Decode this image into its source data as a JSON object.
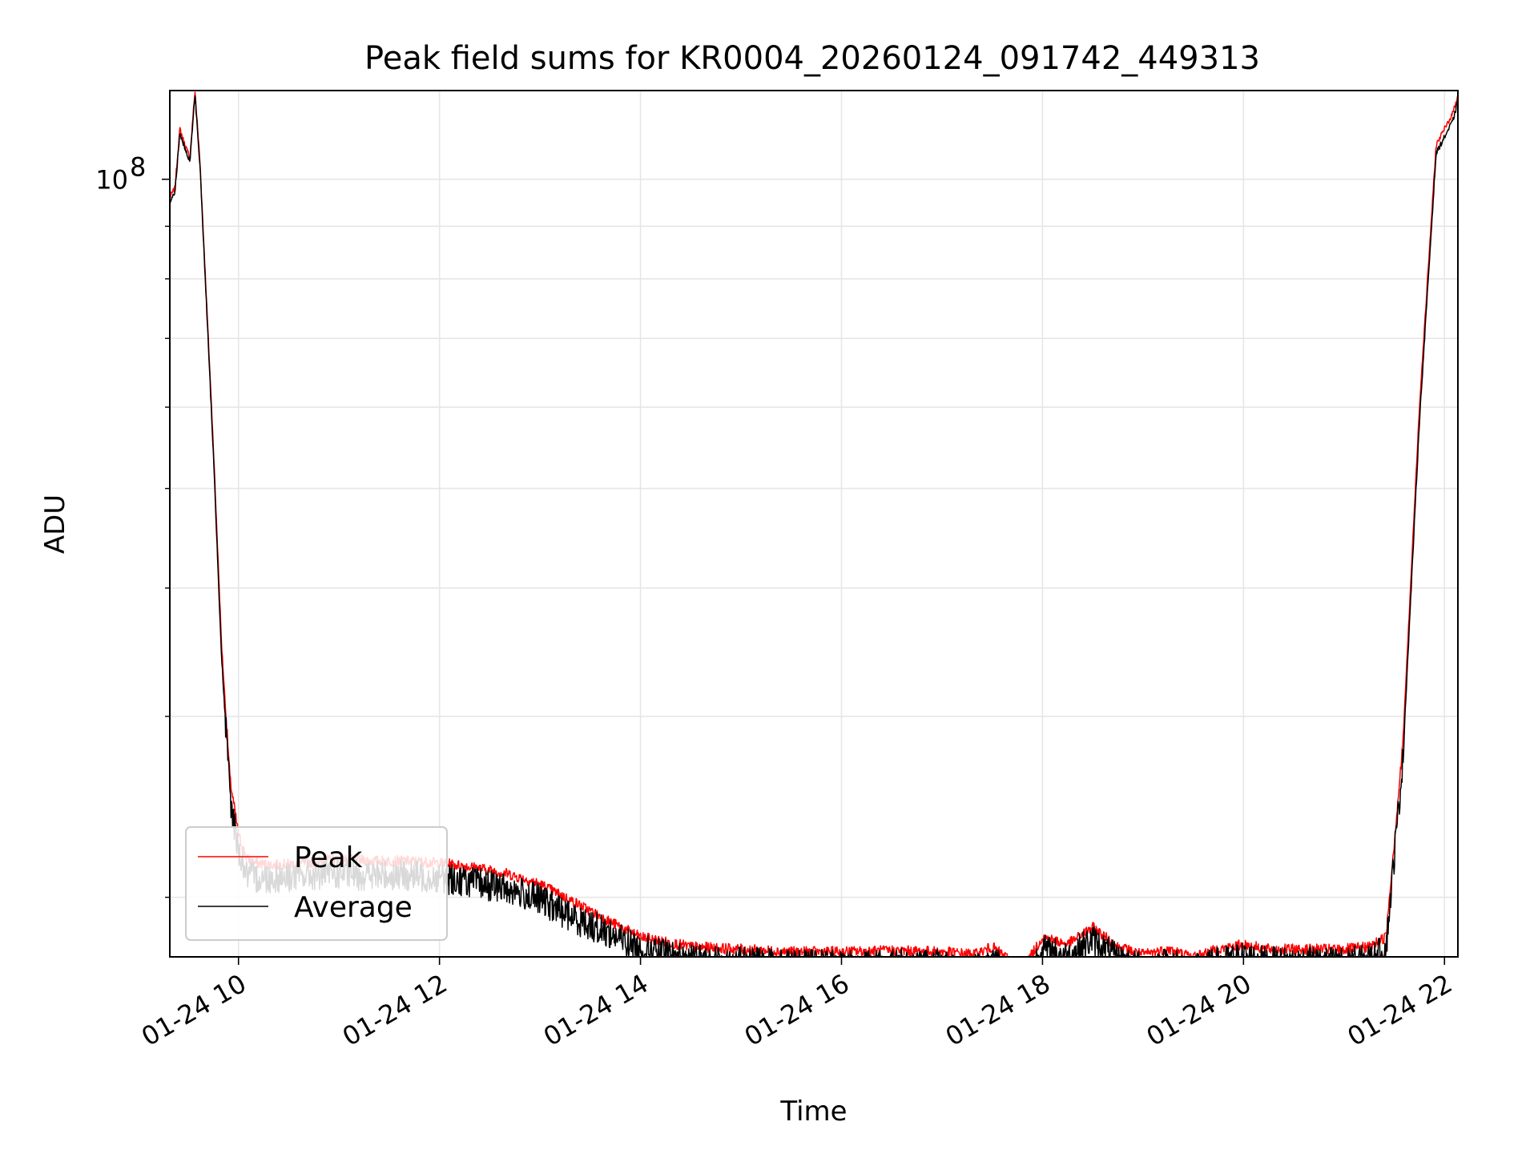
{
  "chart_data": {
    "type": "line",
    "title": "Peak field sums for KR0004_20260124_091742_449313",
    "xlabel": "Time",
    "ylabel": "ADU",
    "yscale": "log",
    "ylim": [
      17500000,
      122000000
    ],
    "xlim": [
      "01-24 09:19",
      "01-24 22:08"
    ],
    "grid": true,
    "legend_position": "lower-left",
    "x_ticks": [
      "01-24 10",
      "01-24 12",
      "01-24 14",
      "01-24 16",
      "01-24 18",
      "01-24 20",
      "01-24 22"
    ],
    "y_ticks": [
      {
        "label": "10",
        "exponent": "8",
        "value": 100000000
      }
    ],
    "y_minor_ticks": [
      20000000,
      30000000,
      40000000,
      50000000,
      60000000,
      70000000,
      80000000,
      90000000
    ],
    "x": [
      "09:19",
      "09:22",
      "09:25",
      "09:28",
      "09:31",
      "09:34",
      "09:37",
      "09:40",
      "09:45",
      "09:50",
      "09:55",
      "10:00",
      "10:05",
      "10:10",
      "10:20",
      "10:40",
      "11:00",
      "11:20",
      "11:40",
      "12:00",
      "12:20",
      "12:40",
      "13:00",
      "13:20",
      "13:40",
      "14:00",
      "14:30",
      "15:00",
      "15:30",
      "16:00",
      "16:30",
      "17:00",
      "17:20",
      "17:30",
      "17:40",
      "17:50",
      "18:00",
      "18:15",
      "18:30",
      "18:45",
      "19:00",
      "19:15",
      "19:30",
      "19:45",
      "20:00",
      "20:15",
      "20:30",
      "20:45",
      "21:00",
      "21:15",
      "21:25",
      "21:35",
      "21:45",
      "21:55",
      "22:05",
      "22:08"
    ],
    "series": [
      {
        "name": "Peak",
        "color": "#ff0000",
        "values": [
          96000000,
          98000000,
          112000000,
          108000000,
          105000000,
          122000000,
          104000000,
          82000000,
          55000000,
          35000000,
          26000000,
          23000000,
          21800000,
          21600000,
          21500000,
          21600000,
          21800000,
          21700000,
          21700000,
          21600000,
          21400000,
          21100000,
          20600000,
          19800000,
          19000000,
          18300000,
          17900000,
          17800000,
          17700000,
          17700000,
          17750000,
          17700000,
          17600000,
          17900000,
          17400000,
          17200000,
          18300000,
          18000000,
          18700000,
          17900000,
          17600000,
          17800000,
          17500000,
          17800000,
          18000000,
          17800000,
          17800000,
          17800000,
          17800000,
          17900000,
          18300000,
          28000000,
          60000000,
          108000000,
          116000000,
          121000000
        ]
      },
      {
        "name": "Average",
        "color": "#000000",
        "values": [
          95000000,
          97000000,
          111000000,
          107000000,
          104000000,
          121000000,
          103000000,
          81000000,
          54000000,
          34000000,
          25000000,
          22200000,
          21000000,
          20900000,
          20900000,
          21000000,
          21100000,
          21000000,
          21000000,
          20900000,
          20700000,
          20400000,
          19900000,
          19100000,
          18500000,
          17800000,
          17400000,
          17300000,
          17200000,
          17200000,
          17250000,
          17200000,
          17000000,
          17400000,
          16900000,
          16700000,
          17800000,
          17500000,
          18200000,
          17400000,
          17100000,
          17300000,
          17000000,
          17300000,
          17500000,
          17300000,
          17300000,
          17300000,
          17300000,
          17400000,
          17800000,
          27000000,
          58000000,
          106000000,
          114000000,
          119000000
        ]
      }
    ]
  }
}
